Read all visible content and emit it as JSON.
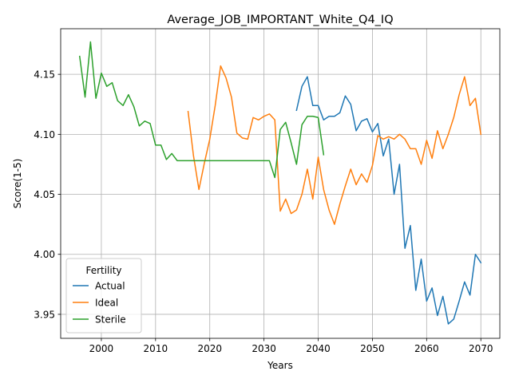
{
  "chart_data": {
    "type": "line",
    "title": "Average_JOB_IMPORTANT_White_Q4_IQ",
    "xlabel": "Years",
    "ylabel": "Score(1-5)",
    "xlim": [
      1992.5,
      2073.5
    ],
    "ylim": [
      3.93,
      4.188
    ],
    "xticks": [
      2000,
      2010,
      2020,
      2030,
      2040,
      2050,
      2060,
      2070
    ],
    "yticks": [
      3.95,
      4.0,
      4.05,
      4.1,
      4.15
    ],
    "ytick_labels": [
      "3.95",
      "4.00",
      "4.05",
      "4.10",
      "4.15"
    ],
    "grid": true,
    "legend": {
      "title": "Fertility",
      "position": "lower-left"
    },
    "series": [
      {
        "name": "Actual",
        "color": "#1f77b4",
        "x": [
          2036,
          2037,
          2038,
          2039,
          2040,
          2041,
          2042,
          2043,
          2044,
          2045,
          2046,
          2047,
          2048,
          2049,
          2050,
          2051,
          2052,
          2053,
          2054,
          2055,
          2056,
          2057,
          2058,
          2059,
          2060,
          2061,
          2062,
          2063,
          2064,
          2065,
          2066,
          2067,
          2068,
          2069,
          2070
        ],
        "values": [
          4.12,
          4.14,
          4.148,
          4.124,
          4.124,
          4.112,
          4.115,
          4.115,
          4.118,
          4.132,
          4.125,
          4.103,
          4.111,
          4.113,
          4.102,
          4.109,
          4.082,
          4.096,
          4.05,
          4.075,
          4.005,
          4.024,
          3.97,
          3.996,
          3.961,
          3.972,
          3.949,
          3.965,
          3.942,
          3.946,
          3.961,
          3.977,
          3.966,
          4.0,
          3.993
        ]
      },
      {
        "name": "Ideal",
        "color": "#ff7f0e",
        "x": [
          2016,
          2017,
          2018,
          2019,
          2020,
          2021,
          2022,
          2023,
          2024,
          2025,
          2026,
          2027,
          2028,
          2029,
          2030,
          2031,
          2032,
          2033,
          2034,
          2035,
          2036,
          2037,
          2038,
          2039,
          2040,
          2041,
          2042,
          2043,
          2044,
          2045,
          2046,
          2047,
          2048,
          2049,
          2050,
          2051,
          2052,
          2053,
          2054,
          2055,
          2056,
          2057,
          2058,
          2059,
          2060,
          2061,
          2062,
          2063,
          2064,
          2065,
          2066,
          2067,
          2068,
          2069,
          2070
        ],
        "values": [
          4.119,
          4.082,
          4.054,
          4.076,
          4.096,
          4.124,
          4.157,
          4.147,
          4.131,
          4.101,
          4.097,
          4.096,
          4.114,
          4.112,
          4.115,
          4.117,
          4.112,
          4.036,
          4.046,
          4.034,
          4.037,
          4.05,
          4.071,
          4.046,
          4.081,
          4.054,
          4.037,
          4.025,
          4.042,
          4.057,
          4.071,
          4.058,
          4.067,
          4.06,
          4.074,
          4.099,
          4.096,
          4.098,
          4.096,
          4.1,
          4.096,
          4.088,
          4.088,
          4.075,
          4.095,
          4.08,
          4.103,
          4.088,
          4.1,
          4.114,
          4.133,
          4.148,
          4.124,
          4.13,
          4.1
        ]
      },
      {
        "name": "Sterile",
        "color": "#2ca02c",
        "x": [
          1996,
          1997,
          1998,
          1999,
          2000,
          2001,
          2002,
          2003,
          2004,
          2005,
          2006,
          2007,
          2008,
          2009,
          2010,
          2011,
          2012,
          2013,
          2014,
          2015,
          2016,
          2017,
          2018,
          2019,
          2020,
          2021,
          2022,
          2023,
          2024,
          2025,
          2026,
          2027,
          2028,
          2029,
          2030,
          2031,
          2032,
          2033,
          2034,
          2035,
          2036,
          2037,
          2038,
          2039,
          2040,
          2041
        ],
        "values": [
          4.165,
          4.131,
          4.177,
          4.13,
          4.151,
          4.14,
          4.143,
          4.128,
          4.124,
          4.133,
          4.123,
          4.107,
          4.111,
          4.109,
          4.091,
          4.091,
          4.079,
          4.084,
          4.078,
          4.078,
          4.078,
          4.078,
          4.078,
          4.078,
          4.078,
          4.078,
          4.078,
          4.078,
          4.078,
          4.078,
          4.078,
          4.078,
          4.078,
          4.078,
          4.078,
          4.078,
          4.064,
          4.104,
          4.11,
          4.093,
          4.075,
          4.108,
          4.115,
          4.115,
          4.114,
          4.083
        ]
      }
    ]
  }
}
